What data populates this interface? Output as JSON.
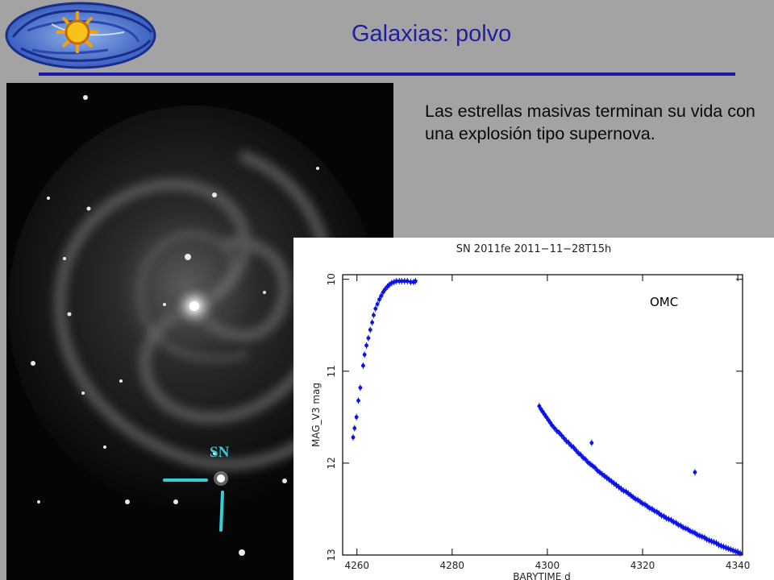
{
  "slide": {
    "title": "Galaxias:  polvo",
    "body_text": "Las estrellas masivas terminan su vida con una explosión tipo supernova.",
    "sn_marker_label": "SN",
    "marker_color": "#2fd0d8",
    "title_color": "#1f1f9f"
  },
  "chart_data": {
    "type": "scatter",
    "title": "SN 2011fe   2011−11−28T15h",
    "xlabel": "BARYTIME   d",
    "ylabel": "MAG_V3   mag",
    "annotation": "OMC",
    "xlim": [
      4257,
      4341
    ],
    "ylim": [
      13,
      9.95
    ],
    "y_inverted": true,
    "x_ticks": [
      4260,
      4280,
      4300,
      4320,
      4340
    ],
    "y_ticks": [
      10,
      11,
      12,
      13
    ],
    "series_color": "#0a14e6",
    "series": [
      {
        "x": [
          4259.2,
          4259.5,
          4259.9,
          4260.3,
          4260.7,
          4261.3,
          4261.6,
          4262.0,
          4262.4,
          4262.8,
          4263.2,
          4263.5,
          4263.9,
          4264.3,
          4264.7,
          4265.1,
          4265.5,
          4265.9,
          4266.4,
          4266.8,
          4267.3,
          4267.8,
          4268.3,
          4268.9,
          4269.4,
          4270.0,
          4270.6,
          4271.3,
          4271.9,
          4272.3,
          4298.3,
          4298.6,
          4299.0,
          4299.4,
          4299.8,
          4300.2,
          4300.6,
          4301.0,
          4301.5,
          4302.0,
          4302.5,
          4303.0,
          4303.5,
          4304.0,
          4304.5,
          4305.0,
          4305.5,
          4306.0,
          4306.5,
          4307.0,
          4307.5,
          4308.0,
          4308.5,
          4309.0,
          4309.5,
          4310.0,
          4310.5,
          4311.0,
          4311.5,
          4312.0,
          4312.5,
          4313.0,
          4313.5,
          4314.0,
          4314.5,
          4315.0,
          4315.5,
          4316.0,
          4316.5,
          4317.0,
          4317.5,
          4318.0,
          4318.5,
          4319.0,
          4319.5,
          4320.0,
          4320.5,
          4321.0,
          4321.5,
          4322.0,
          4322.5,
          4323.0,
          4323.5,
          4324.0,
          4324.5,
          4325.0,
          4325.5,
          4326.0,
          4326.5,
          4327.0,
          4327.5,
          4328.0,
          4328.5,
          4329.0,
          4329.5,
          4330.0,
          4330.5,
          4331.0,
          4331.5,
          4332.0,
          4332.5,
          4333.0,
          4333.5,
          4334.0,
          4334.5,
          4335.0,
          4335.5,
          4336.0,
          4336.5,
          4337.0,
          4337.5,
          4338.0,
          4338.5,
          4339.0,
          4339.5,
          4340.0,
          4340.5,
          4309.3,
          4331.0
        ],
        "y": [
          11.72,
          11.62,
          11.5,
          11.32,
          11.18,
          10.94,
          10.82,
          10.72,
          10.64,
          10.55,
          10.47,
          10.39,
          10.32,
          10.27,
          10.22,
          10.18,
          10.14,
          10.11,
          10.08,
          10.06,
          10.04,
          10.03,
          10.02,
          10.02,
          10.02,
          10.02,
          10.02,
          10.03,
          10.03,
          10.02,
          11.38,
          11.41,
          11.44,
          11.47,
          11.5,
          11.53,
          11.56,
          11.59,
          11.62,
          11.65,
          11.67,
          11.7,
          11.73,
          11.76,
          11.78,
          11.81,
          11.83,
          11.86,
          11.89,
          11.91,
          11.94,
          11.96,
          11.99,
          12.01,
          12.03,
          12.05,
          12.08,
          12.1,
          12.12,
          12.14,
          12.16,
          12.18,
          12.2,
          12.22,
          12.24,
          12.26,
          12.28,
          12.3,
          12.31,
          12.33,
          12.35,
          12.37,
          12.39,
          12.4,
          12.42,
          12.44,
          12.45,
          12.47,
          12.49,
          12.5,
          12.52,
          12.53,
          12.55,
          12.57,
          12.58,
          12.6,
          12.61,
          12.62,
          12.64,
          12.65,
          12.67,
          12.68,
          12.7,
          12.71,
          12.72,
          12.74,
          12.75,
          12.76,
          12.78,
          12.79,
          12.8,
          12.81,
          12.83,
          12.84,
          12.85,
          12.86,
          12.87,
          12.89,
          12.9,
          12.91,
          12.92,
          12.93,
          12.94,
          12.95,
          12.96,
          12.97,
          12.98,
          11.78,
          12.1
        ]
      }
    ]
  }
}
